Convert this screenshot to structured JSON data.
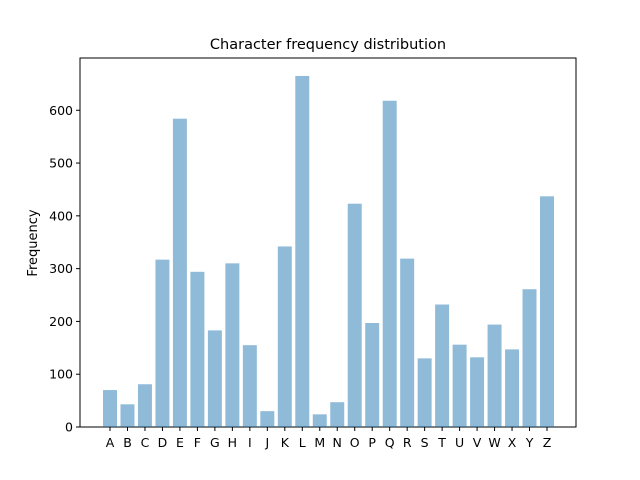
{
  "chart_data": {
    "type": "bar",
    "title": "Character frequency distribution",
    "xlabel": "",
    "ylabel": "Frequency",
    "categories": [
      "A",
      "B",
      "C",
      "D",
      "E",
      "F",
      "G",
      "H",
      "I",
      "J",
      "K",
      "L",
      "M",
      "N",
      "O",
      "P",
      "Q",
      "R",
      "S",
      "T",
      "U",
      "V",
      "W",
      "X",
      "Y",
      "Z"
    ],
    "values": [
      70,
      43,
      81,
      317,
      584,
      294,
      183,
      310,
      155,
      30,
      342,
      665,
      24,
      47,
      423,
      197,
      618,
      319,
      130,
      232,
      156,
      132,
      194,
      147,
      261,
      437
    ],
    "ylim": [
      0,
      699
    ],
    "yticks": [
      0,
      100,
      200,
      300,
      400,
      500,
      600
    ],
    "grid": false,
    "colors": {
      "bar": "#1f77b4",
      "bar_alpha": "0.5",
      "axes": "#000000",
      "background": "#ffffff"
    }
  }
}
